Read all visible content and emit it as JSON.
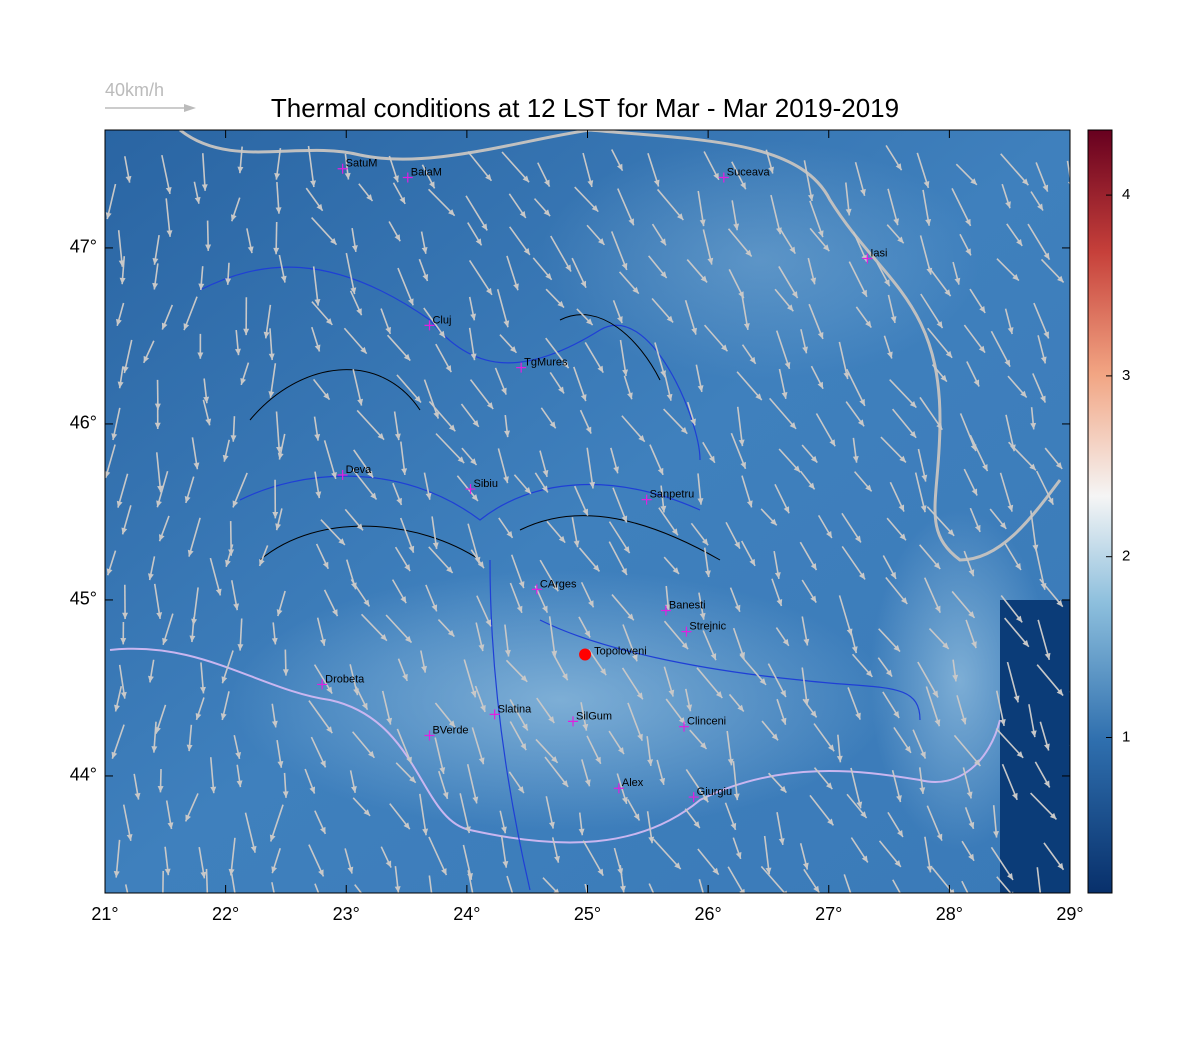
{
  "map": {
    "title": "Thermal conditions at 12 LST for Mar - Mar  2019-2019",
    "wind_legend": "40km/h",
    "xlim": [
      21,
      29
    ],
    "ylim": [
      43.335,
      47.67
    ],
    "xticks": [
      {
        "value": 21,
        "label": "21°"
      },
      {
        "value": 22,
        "label": "22°"
      },
      {
        "value": 23,
        "label": "23°"
      },
      {
        "value": 24,
        "label": "24°"
      },
      {
        "value": 25,
        "label": "25°"
      },
      {
        "value": 26,
        "label": "26°"
      },
      {
        "value": 27,
        "label": "27°"
      },
      {
        "value": 28,
        "label": "28°"
      },
      {
        "value": 29,
        "label": "29°"
      }
    ],
    "yticks": [
      {
        "value": 44,
        "label": "44°"
      },
      {
        "value": 45,
        "label": "45°"
      },
      {
        "value": 46,
        "label": "46°"
      },
      {
        "value": 47,
        "label": "47°"
      }
    ],
    "colorbar": {
      "lim": [
        0.14,
        4.36
      ],
      "ticks": [
        1,
        2,
        3,
        4
      ]
    },
    "cities": [
      {
        "name": "SatuM",
        "lon": 22.97,
        "lat": 47.45
      },
      {
        "name": "BaiaM",
        "lon": 23.51,
        "lat": 47.4
      },
      {
        "name": "Suceava",
        "lon": 26.13,
        "lat": 47.4
      },
      {
        "name": "Iasi",
        "lon": 27.32,
        "lat": 46.94
      },
      {
        "name": "Cluj",
        "lon": 23.69,
        "lat": 46.56
      },
      {
        "name": "TgMures",
        "lon": 24.45,
        "lat": 46.32
      },
      {
        "name": "Deva",
        "lon": 22.97,
        "lat": 45.71
      },
      {
        "name": "Sibiu",
        "lon": 24.03,
        "lat": 45.63
      },
      {
        "name": "Sanpetru",
        "lon": 25.49,
        "lat": 45.57
      },
      {
        "name": "CArges",
        "lon": 24.58,
        "lat": 45.06
      },
      {
        "name": "Banesti",
        "lon": 25.65,
        "lat": 44.94
      },
      {
        "name": "Strejnic",
        "lon": 25.82,
        "lat": 44.82
      },
      {
        "name": "Drobeta",
        "lon": 22.8,
        "lat": 44.52
      },
      {
        "name": "Slatina",
        "lon": 24.23,
        "lat": 44.35
      },
      {
        "name": "SilGum",
        "lon": 24.88,
        "lat": 44.31
      },
      {
        "name": "BVerde",
        "lon": 23.69,
        "lat": 44.23
      },
      {
        "name": "Clinceni",
        "lon": 25.8,
        "lat": 44.28
      },
      {
        "name": "Alex",
        "lon": 25.26,
        "lat": 43.93
      },
      {
        "name": "Giurgiu",
        "lon": 25.88,
        "lat": 43.88
      }
    ],
    "site": {
      "name": "Topoloveni",
      "lon": 24.98,
      "lat": 44.69
    }
  }
}
